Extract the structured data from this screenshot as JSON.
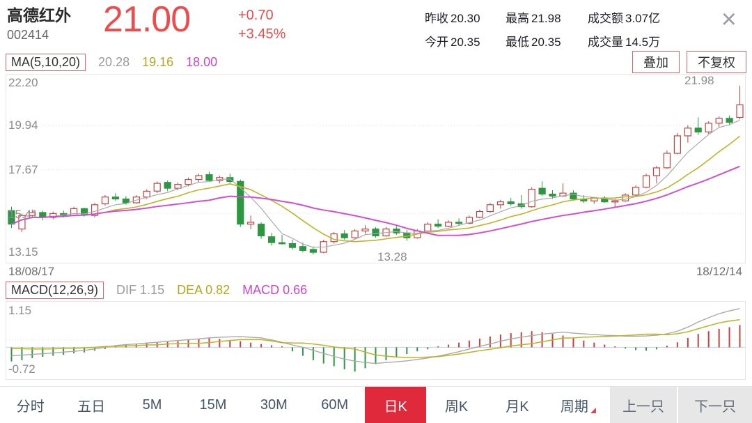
{
  "header": {
    "name": "高德红外",
    "code": "002414",
    "price": "21.00",
    "change": "+0.70",
    "change_pct": "+3.45%",
    "stats": [
      {
        "label": "昨收",
        "value": "20.30"
      },
      {
        "label": "最高",
        "value": "21.98"
      },
      {
        "label": "成交额",
        "value": "3.07亿"
      },
      {
        "label": "今开",
        "value": "20.35"
      },
      {
        "label": "最低",
        "value": "20.35"
      },
      {
        "label": "成交量",
        "value": "14.5万"
      }
    ],
    "close_icon": "×"
  },
  "ma_bar": {
    "label": "MA(5,10,20)",
    "ma5": "20.28",
    "ma10": "19.16",
    "ma20": "18.00",
    "overlay_button": "叠加",
    "adjust_button": "不复权"
  },
  "macd_bar": {
    "label": "MACD(12,26,9)",
    "dif": "DIF 1.15",
    "dea": "DEA 0.82",
    "macd": "MACD 0.66"
  },
  "tabs": {
    "items": [
      "分时",
      "五日",
      "5M",
      "15M",
      "30M",
      "60M",
      "日K",
      "周K",
      "月K",
      "周期"
    ],
    "selected": "日K",
    "prev": "上一只",
    "next": "下一只"
  },
  "colors": {
    "accent_red": "#e02a3c",
    "price_red": "#ef4b4b",
    "up": "#c5433e",
    "down": "#2c9640",
    "ma5": "#a9a9a9",
    "ma10": "#bfb428",
    "ma20": "#d24ed2",
    "zero_line": "#c7d0dc",
    "grid": "#d9d9d9",
    "axis_text": "#8c8c8c"
  },
  "chart_data": [
    {
      "type": "candlestick",
      "title": "日K candlestick with MA(5,10,20)",
      "ylim": [
        13.15,
        22.2
      ],
      "y_ticks": [
        "22.20",
        "19.94",
        "17.67",
        "15.41",
        "13.15"
      ],
      "grid_values": [
        19.94,
        17.67,
        15.41
      ],
      "x_start_label": "18/08/17",
      "x_end_label": "18/12/14",
      "annotations": [
        {
          "text": "21.98"
        },
        {
          "text": "13.28"
        }
      ],
      "ma_periods": [
        5,
        10,
        20
      ],
      "candles": [
        [
          15.55,
          15.75,
          14.65,
          14.85
        ],
        [
          14.6,
          15.4,
          14.45,
          15.3
        ],
        [
          15.3,
          15.6,
          15.15,
          15.45
        ],
        [
          15.45,
          15.55,
          15.05,
          15.2
        ],
        [
          15.2,
          15.5,
          15.1,
          15.4
        ],
        [
          15.4,
          15.55,
          15.2,
          15.3
        ],
        [
          15.3,
          15.75,
          15.25,
          15.65
        ],
        [
          15.65,
          15.7,
          15.25,
          15.35
        ],
        [
          15.3,
          15.95,
          15.2,
          15.85
        ],
        [
          15.9,
          16.35,
          15.8,
          16.25
        ],
        [
          16.25,
          16.45,
          16.05,
          16.15
        ],
        [
          16.15,
          16.3,
          15.85,
          15.95
        ],
        [
          15.95,
          16.35,
          15.9,
          16.25
        ],
        [
          16.25,
          16.65,
          16.15,
          16.55
        ],
        [
          16.55,
          17.05,
          16.45,
          16.95
        ],
        [
          17.0,
          17.1,
          16.55,
          16.7
        ],
        [
          16.7,
          17.0,
          16.6,
          16.9
        ],
        [
          16.9,
          17.25,
          16.8,
          17.15
        ],
        [
          17.15,
          17.45,
          17.0,
          17.35
        ],
        [
          17.4,
          17.55,
          17.05,
          17.1
        ],
        [
          17.1,
          17.35,
          16.95,
          17.25
        ],
        [
          17.25,
          17.45,
          16.95,
          17.05
        ],
        [
          17.05,
          17.15,
          14.7,
          14.85
        ],
        [
          14.85,
          15.3,
          14.6,
          14.95
        ],
        [
          14.85,
          14.95,
          14.1,
          14.25
        ],
        [
          14.2,
          14.4,
          13.75,
          13.9
        ],
        [
          13.9,
          14.3,
          13.8,
          13.85
        ],
        [
          13.85,
          14.05,
          13.55,
          13.65
        ],
        [
          13.7,
          13.9,
          13.4,
          13.5
        ],
        [
          13.55,
          13.7,
          13.28,
          13.4
        ],
        [
          13.4,
          14.05,
          13.35,
          13.95
        ],
        [
          13.95,
          14.45,
          13.85,
          14.35
        ],
        [
          14.35,
          14.55,
          14.05,
          14.15
        ],
        [
          14.15,
          14.6,
          14.1,
          14.5
        ],
        [
          14.5,
          14.8,
          14.35,
          14.6
        ],
        [
          14.6,
          14.7,
          14.15,
          14.25
        ],
        [
          14.25,
          14.7,
          14.2,
          14.6
        ],
        [
          14.6,
          14.75,
          14.3,
          14.4
        ],
        [
          14.4,
          14.55,
          14.0,
          14.15
        ],
        [
          14.15,
          14.6,
          14.1,
          14.5
        ],
        [
          14.5,
          14.95,
          14.45,
          14.85
        ],
        [
          14.85,
          15.1,
          14.65,
          14.75
        ],
        [
          14.75,
          15.05,
          14.7,
          14.95
        ],
        [
          14.95,
          15.15,
          14.8,
          14.9
        ],
        [
          14.9,
          15.3,
          14.85,
          15.2
        ],
        [
          15.2,
          15.6,
          15.15,
          15.5
        ],
        [
          15.5,
          15.95,
          15.45,
          15.85
        ],
        [
          15.85,
          16.1,
          15.65,
          16.0
        ],
        [
          16.0,
          16.2,
          15.8,
          15.9
        ],
        [
          15.9,
          16.35,
          15.65,
          15.75
        ],
        [
          15.75,
          16.75,
          15.7,
          16.65
        ],
        [
          16.7,
          17.05,
          16.3,
          16.4
        ],
        [
          16.4,
          16.6,
          16.15,
          16.3
        ],
        [
          16.3,
          16.95,
          16.25,
          16.45
        ],
        [
          16.45,
          16.6,
          16.05,
          16.15
        ],
        [
          16.15,
          16.35,
          15.95,
          16.05
        ],
        [
          16.05,
          16.25,
          15.9,
          16.2
        ],
        [
          16.2,
          16.3,
          15.95,
          16.0
        ],
        [
          16.0,
          16.15,
          15.7,
          16.05
        ],
        [
          16.05,
          16.45,
          16.0,
          16.35
        ],
        [
          16.35,
          16.85,
          16.3,
          16.75
        ],
        [
          16.75,
          17.45,
          16.7,
          17.35
        ],
        [
          17.35,
          17.85,
          16.95,
          17.75
        ],
        [
          17.75,
          18.65,
          17.7,
          18.5
        ],
        [
          18.5,
          19.55,
          18.45,
          19.4
        ],
        [
          19.4,
          19.95,
          19.05,
          19.8
        ],
        [
          19.8,
          20.35,
          19.45,
          19.6
        ],
        [
          19.6,
          20.15,
          19.5,
          20.05
        ],
        [
          20.05,
          20.4,
          19.85,
          20.3
        ],
        [
          20.3,
          20.45,
          19.95,
          20.1
        ],
        [
          20.35,
          21.98,
          20.25,
          21.0
        ]
      ]
    },
    {
      "type": "macd",
      "ylim": [
        -0.72,
        1.15
      ],
      "y_ticks": [
        "1.15",
        "-0.72"
      ],
      "dif": [
        -0.25,
        -0.23,
        -0.21,
        -0.19,
        -0.17,
        -0.14,
        -0.12,
        -0.09,
        -0.05,
        0.0,
        0.05,
        0.08,
        0.1,
        0.13,
        0.15,
        0.18,
        0.2,
        0.23,
        0.25,
        0.28,
        0.3,
        0.31,
        0.32,
        0.3,
        0.28,
        0.22,
        0.15,
        0.07,
        0.0,
        -0.09,
        -0.18,
        -0.27,
        -0.35,
        -0.41,
        -0.45,
        -0.48,
        -0.45,
        -0.43,
        -0.4,
        -0.36,
        -0.32,
        -0.26,
        -0.2,
        -0.13,
        -0.05,
        0.03,
        0.1,
        0.18,
        0.25,
        0.3,
        0.35,
        0.39,
        0.42,
        0.45,
        0.42,
        0.4,
        0.38,
        0.36,
        0.35,
        0.33,
        0.33,
        0.34,
        0.36,
        0.4,
        0.48,
        0.6,
        0.75,
        0.88,
        1.0,
        1.08,
        1.15
      ],
      "hist": [
        -0.42,
        -0.38,
        -0.32,
        -0.28,
        -0.25,
        -0.22,
        -0.18,
        -0.15,
        -0.1,
        -0.05,
        0.04,
        0.08,
        0.1,
        0.12,
        0.15,
        0.16,
        0.18,
        0.22,
        0.26,
        0.28,
        0.25,
        0.22,
        0.18,
        0.14,
        0.1,
        0.06,
        0.03,
        -0.12,
        -0.25,
        -0.38,
        -0.48,
        -0.56,
        -0.65,
        -0.72,
        -0.62,
        -0.5,
        -0.38,
        -0.28,
        -0.2,
        -0.12,
        -0.06,
        0.03,
        0.08,
        0.14,
        0.2,
        0.26,
        0.32,
        0.38,
        0.42,
        0.45,
        0.48,
        0.45,
        0.4,
        0.35,
        0.28,
        0.2,
        0.14,
        0.08,
        0.03,
        -0.04,
        -0.08,
        -0.1,
        -0.06,
        0.05,
        0.15,
        0.28,
        0.4,
        0.48,
        0.55,
        0.6,
        0.66
      ]
    }
  ]
}
